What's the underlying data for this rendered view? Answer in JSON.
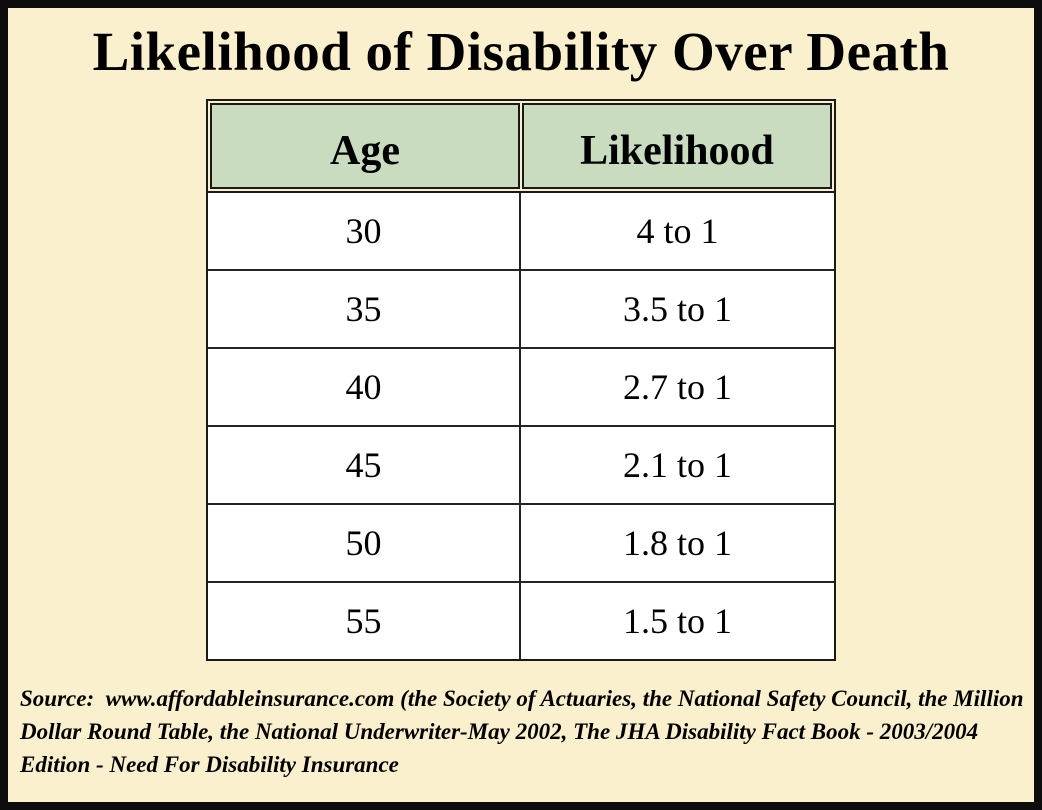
{
  "title": "Likelihood of Disability Over Death",
  "table": {
    "columns": [
      "Age",
      "Likelihood"
    ],
    "rows": [
      [
        "30",
        "4 to 1"
      ],
      [
        "35",
        "3.5 to 1"
      ],
      [
        "40",
        "2.7 to 1"
      ],
      [
        "45",
        "2.1 to 1"
      ],
      [
        "50",
        "1.8 to 1"
      ],
      [
        "55",
        "1.5 to 1"
      ]
    ]
  },
  "source": {
    "text": "Source:  www.affordableinsurance.com (the Society of Actuaries, the National Safety Council, the Million Dollar Round Table, the National Underwriter-May 2002, The JHA Disability Fact Book - 2003/2004 Edition - Need For Disability Insurance"
  },
  "colors": {
    "background": "#FAF0CE",
    "header_fill": "#C9DCC0",
    "border": "#1A1A1A",
    "cell_background": "#FFFFFF",
    "text": "#000000"
  },
  "chart_data": {
    "type": "table",
    "title": "Likelihood of Disability Over Death",
    "columns": [
      "Age",
      "Likelihood"
    ],
    "categories": [
      30,
      35,
      40,
      45,
      50,
      55
    ],
    "values": [
      4,
      3.5,
      2.7,
      2.1,
      1.8,
      1.5
    ],
    "value_labels": [
      "4 to 1",
      "3.5 to 1",
      "2.7 to 1",
      "2.1 to 1",
      "1.8 to 1",
      "1.5 to 1"
    ],
    "source": "www.affordableinsurance.com (the Society of Actuaries, the National Safety Council, the Million Dollar Round Table, the National Underwriter-May 2002, The JHA Disability Fact Book - 2003/2004 Edition - Need For Disability Insurance)"
  }
}
